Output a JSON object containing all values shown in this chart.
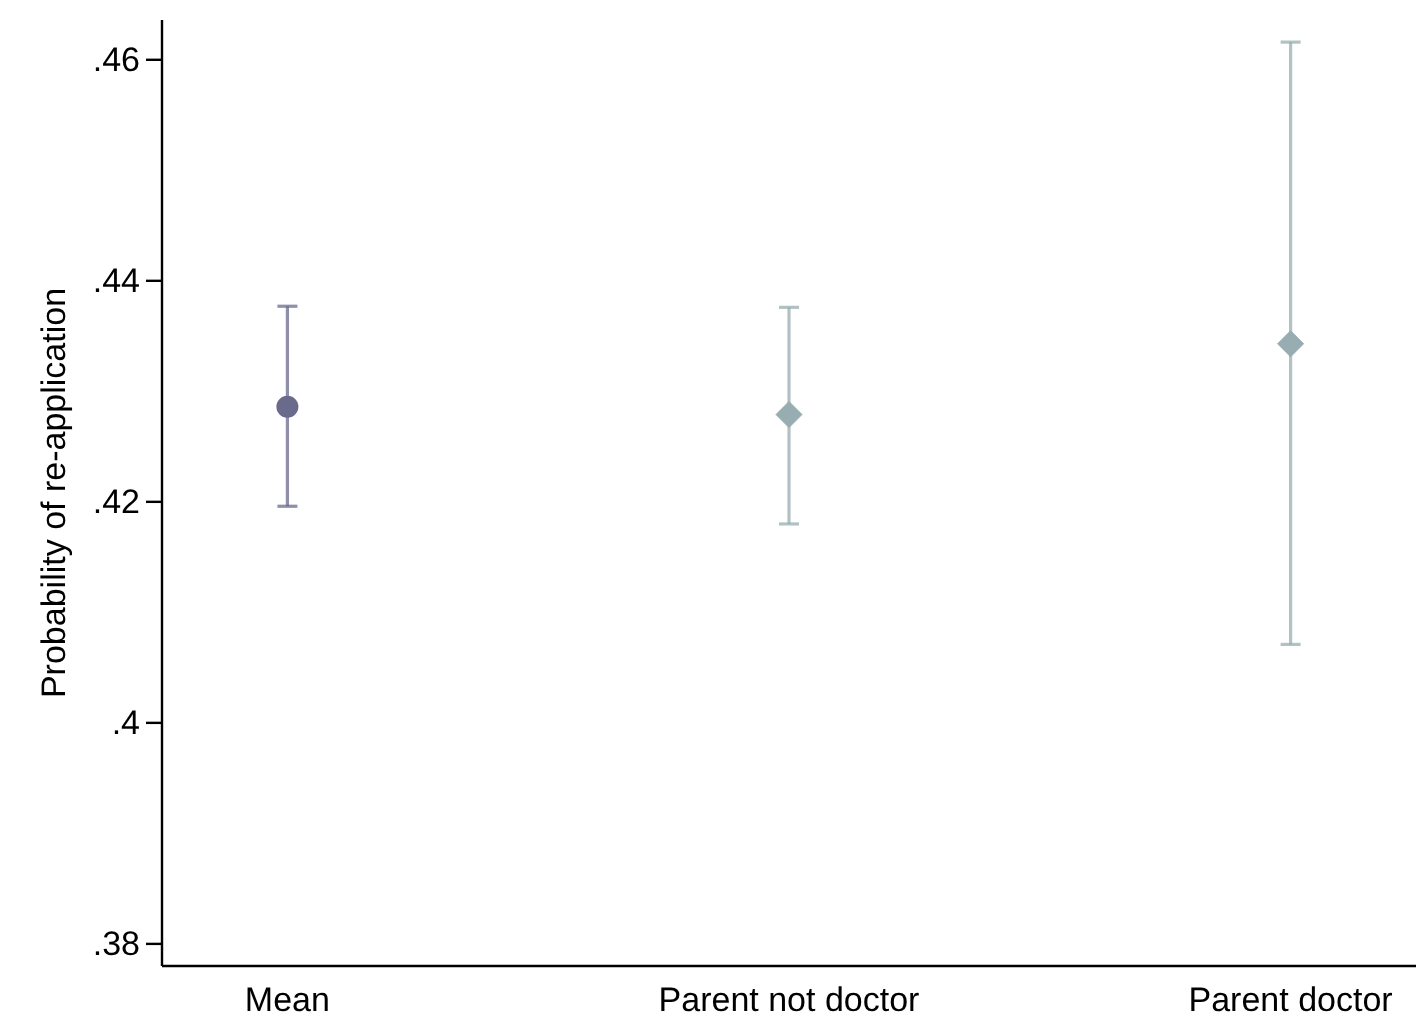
{
  "chart_data": {
    "type": "scatter",
    "ylabel": "Probability of re-application",
    "categories": [
      "Mean",
      "Parent not doctor",
      "Parent doctor"
    ],
    "series": [
      {
        "color": "#6a6a8c",
        "marker": "circle",
        "values": [
          0.4286,
          null,
          null
        ],
        "errors": [
          [
            0.4196,
            0.4377
          ],
          null,
          null
        ]
      },
      {
        "color": "#97adb2",
        "marker": "diamond",
        "values": [
          null,
          0.4279,
          0.4343
        ],
        "errors": [
          null,
          [
            0.418,
            0.4376
          ],
          [
            0.4071,
            0.4616
          ]
        ]
      }
    ],
    "ylim": [
      0.378,
      0.4636
    ],
    "yticks": [
      {
        "value": 0.38,
        "label": ".38"
      },
      {
        "value": 0.4,
        "label": ".4"
      },
      {
        "value": 0.42,
        "label": ".42"
      },
      {
        "value": 0.44,
        "label": ".44"
      },
      {
        "value": 0.46,
        "label": ".46"
      }
    ]
  }
}
